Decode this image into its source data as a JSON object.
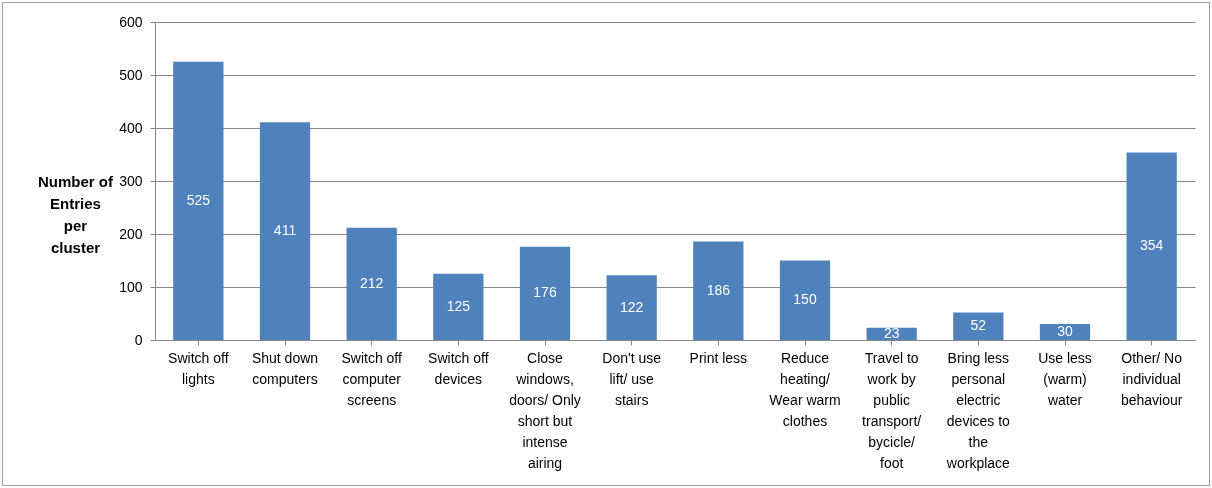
{
  "chart_data": {
    "type": "bar",
    "ylabel": "Number of Entries per cluster",
    "categories": [
      "Switch off lights",
      "Shut down computers",
      "Switch off computer screens",
      "Switch off devices",
      "Close windows, doors/ Only short but intense airing",
      "Don't use lift/ use stairs",
      "Print less",
      "Reduce heating/ Wear warm clothes",
      "Travel to work by public transport/ bycicle/ foot",
      "Bring less personal electric devices to the workplace",
      "Use less (warm) water",
      "Other/ No individual behaviour"
    ],
    "values": [
      525,
      411,
      212,
      125,
      176,
      122,
      186,
      150,
      23,
      52,
      30,
      354
    ],
    "color": "#4f81bd",
    "ylim": [
      0,
      600
    ],
    "yticks": [
      0,
      100,
      200,
      300,
      400,
      500,
      600
    ],
    "grid": "y",
    "data_labels": true
  }
}
